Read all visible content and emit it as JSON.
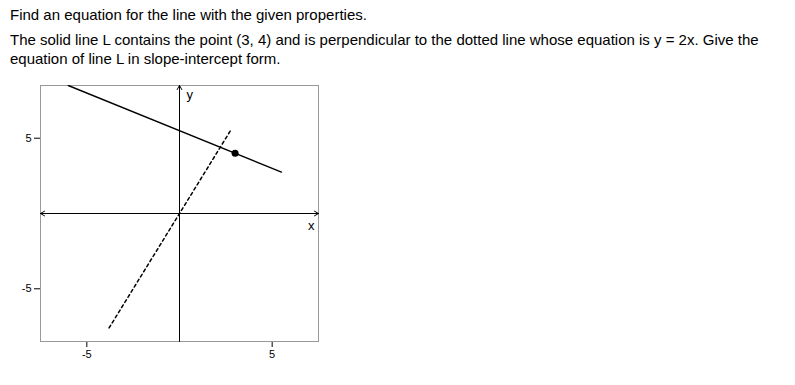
{
  "chart_data": {
    "type": "line",
    "title": "Find an equation for the line with the given properties.",
    "subtitle": "The solid line L contains the point (3, 4) and is perpendicular to the dotted line whose equation is y = 2x. Give the equation of line L in slope-intercept form.",
    "xlabel": "x",
    "ylabel": "y",
    "xlim": [
      -7.5,
      7.5
    ],
    "ylim": [
      -8.5,
      8.5
    ],
    "xticks": [
      -5,
      5
    ],
    "yticks": [
      -5,
      5
    ],
    "grid": false,
    "series": [
      {
        "type": "line",
        "color": "#000000",
        "line_style": "solid",
        "x": [
          -6.0,
          5.5
        ],
        "values": [
          8.5,
          2.75
        ]
      },
      {
        "type": "line",
        "color": "#000000",
        "line_style": "dotted",
        "x": [
          -3.8,
          2.8
        ],
        "values": [
          -7.6,
          5.6
        ]
      },
      {
        "type": "scatter",
        "color": "#000000",
        "marker": "circle",
        "x": [
          3
        ],
        "values": [
          4
        ]
      }
    ]
  }
}
